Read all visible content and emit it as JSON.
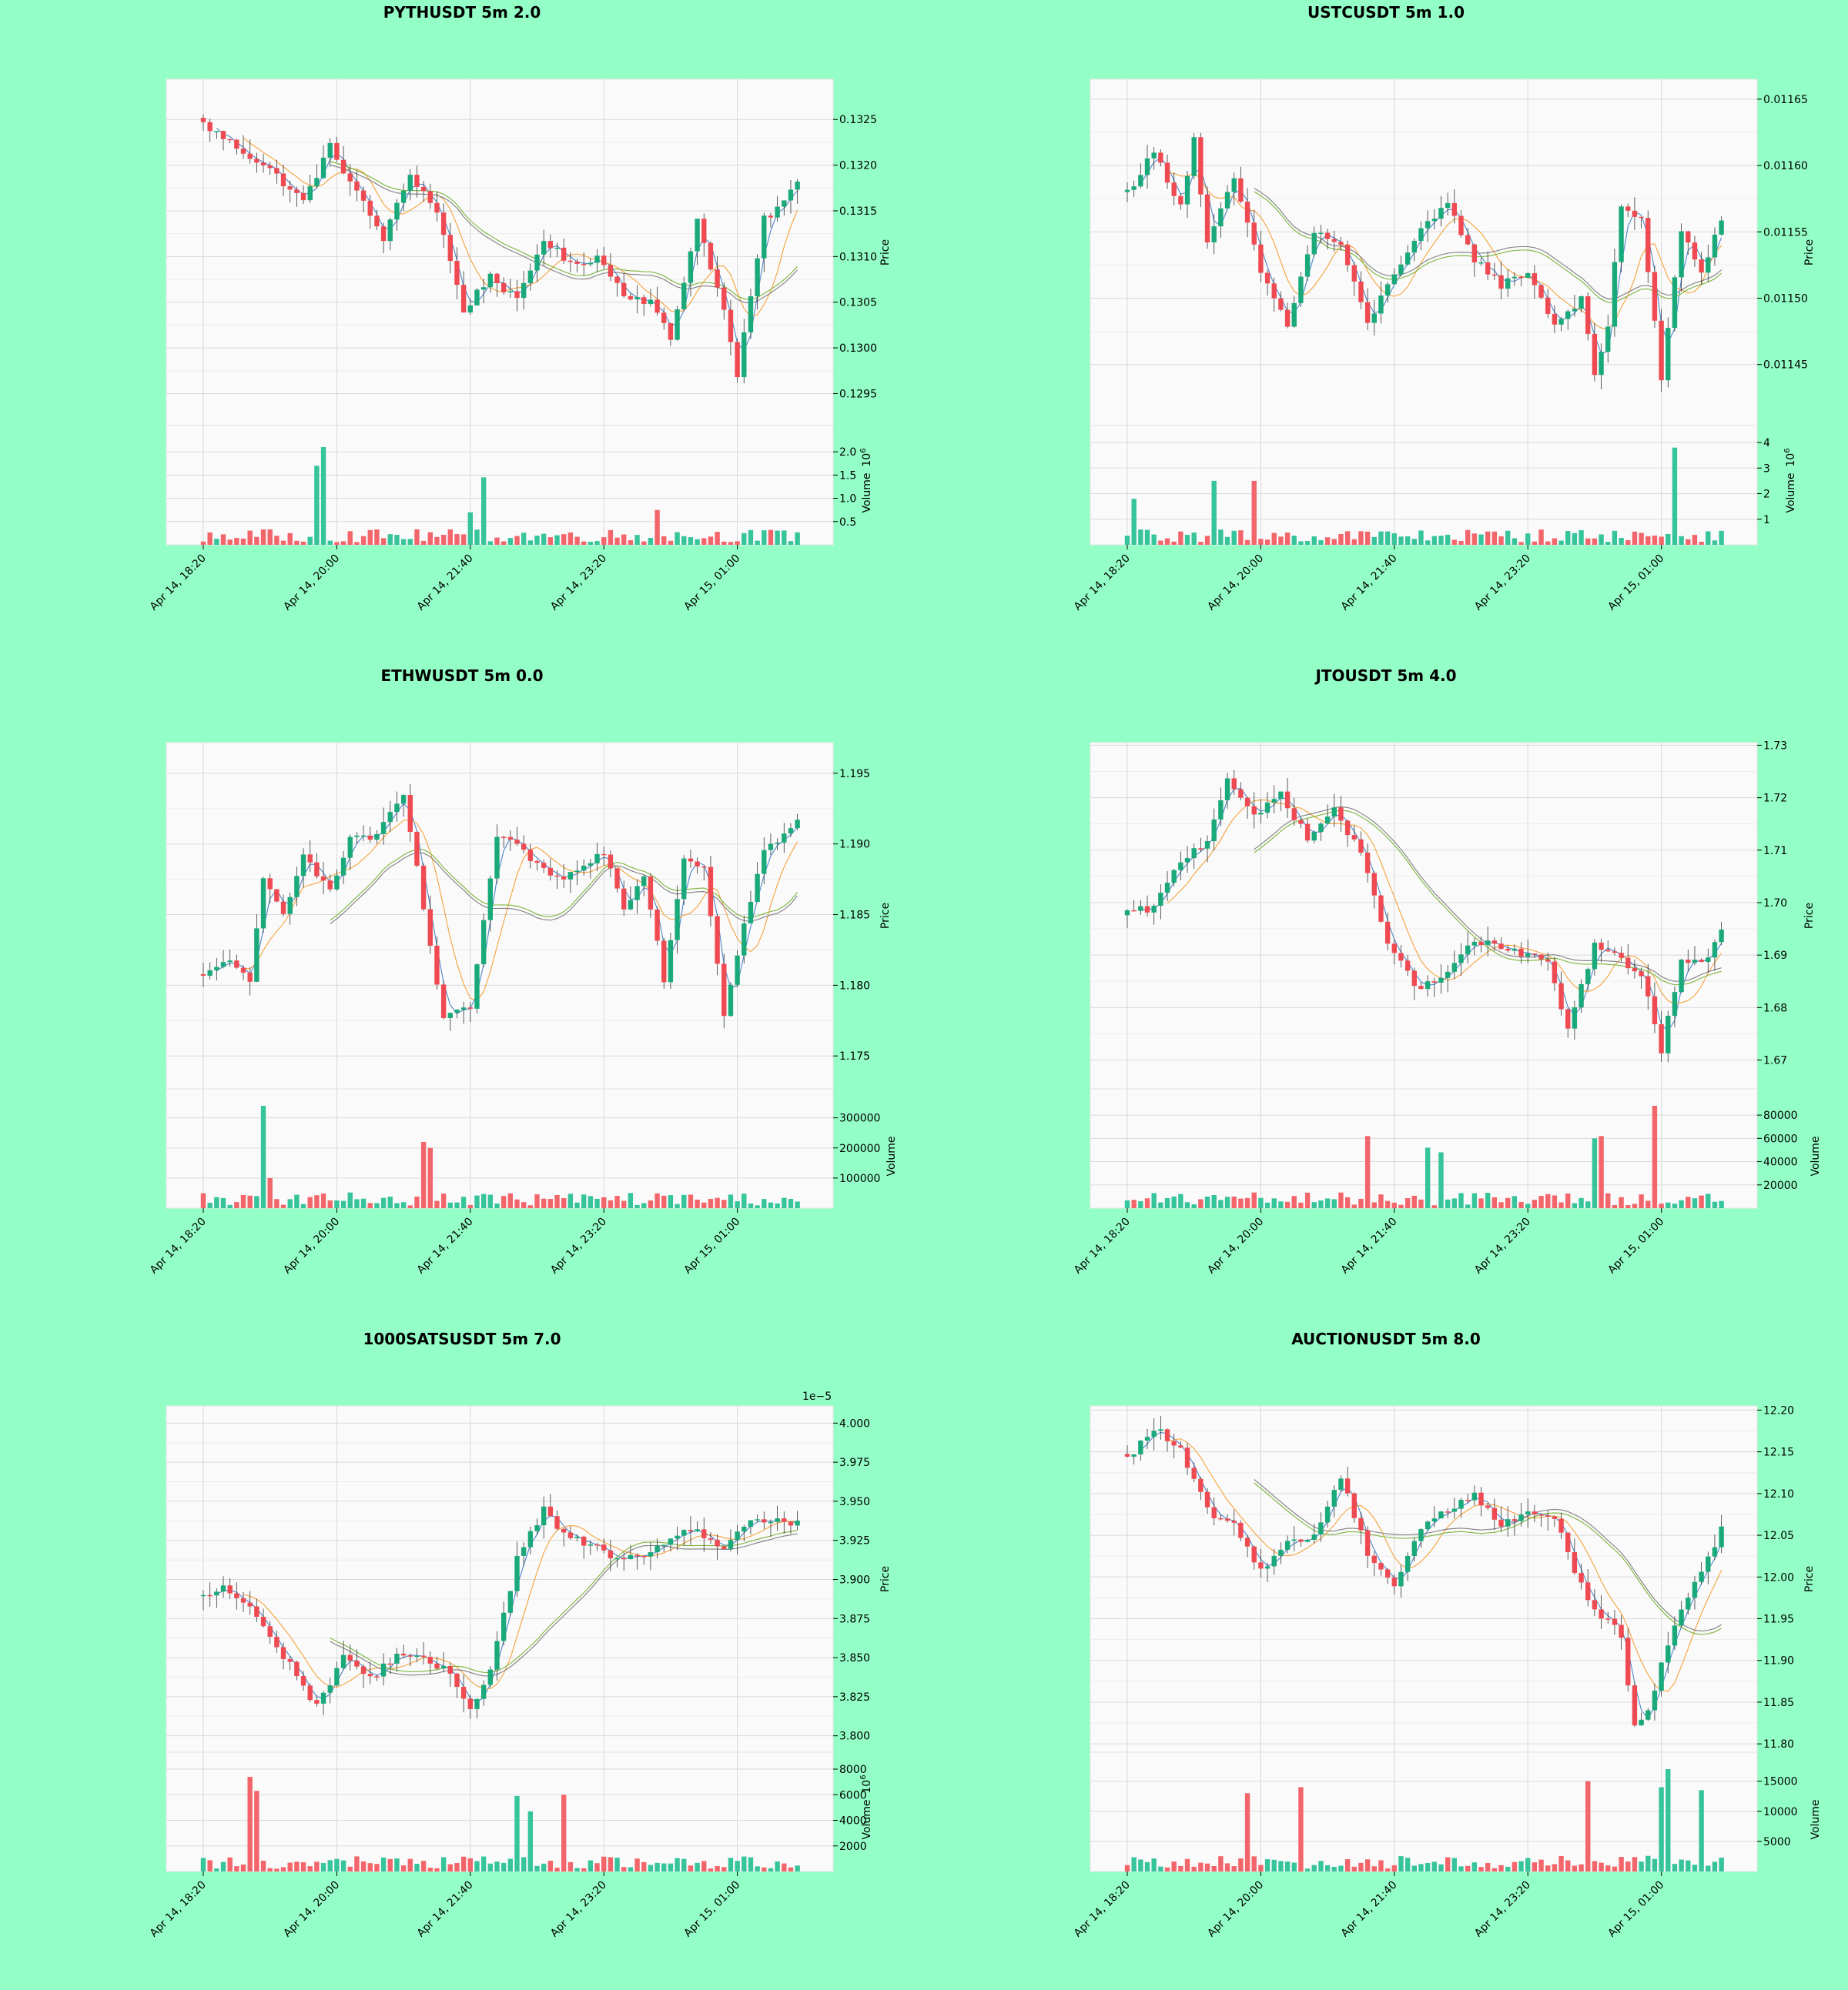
{
  "colors": {
    "background": "#93ffc6",
    "plot_background": "#fafafa",
    "grid": "#d9d9d9",
    "up": "#1aa97a",
    "down": "#ef4a52",
    "volume_up": "#36c49b",
    "volume_down": "#f2666b",
    "ma_fast": "#4f86c9",
    "ma_mid": "#f5a23c",
    "ma_slow_a": "#7ab43a",
    "ma_slow_b": "#7f7f7f"
  },
  "chart_data": [
    {
      "type": "candlestick",
      "title": "PYTHUSDT 5m 2.0",
      "ylabel": "Price",
      "volume_label": "Volume",
      "volume_exponent": "10",
      "volume_exponent_power": "6",
      "price_offset_label": "",
      "x_ticks": [
        "Apr 14, 18:20",
        "Apr 14, 20:00",
        "Apr 14, 21:40",
        "Apr 14, 23:20",
        "Apr 15, 01:00"
      ],
      "price_ticks": [
        "0.1295",
        "0.1300",
        "0.1305",
        "0.1310",
        "0.1315",
        "0.1320",
        "0.1325"
      ],
      "price_range": [
        0.12915,
        0.13294
      ],
      "volume_ticks": [
        "0.5",
        "1.0",
        "1.5",
        "2.0"
      ],
      "volume_range": [
        0,
        2.2
      ],
      "anchors": [
        [
          0,
          0.13245
        ],
        [
          5,
          0.1322
        ],
        [
          10,
          0.13195
        ],
        [
          15,
          0.1316
        ],
        [
          19,
          0.1322
        ],
        [
          23,
          0.1317
        ],
        [
          27,
          0.1312
        ],
        [
          31,
          0.1319
        ],
        [
          35,
          0.1315
        ],
        [
          39,
          0.1304
        ],
        [
          43,
          0.1308
        ],
        [
          47,
          0.1305
        ],
        [
          51,
          0.1312
        ],
        [
          55,
          0.1309
        ],
        [
          59,
          0.131
        ],
        [
          63,
          0.1306
        ],
        [
          67,
          0.1305
        ],
        [
          70,
          0.1301
        ],
        [
          74,
          0.1314
        ],
        [
          78,
          0.1304
        ],
        [
          80,
          0.1297
        ],
        [
          84,
          0.1314
        ],
        [
          87,
          0.1316
        ],
        [
          89,
          0.1318
        ]
      ],
      "volume_spikes": [
        [
          17,
          1.7
        ],
        [
          18,
          2.1
        ],
        [
          40,
          0.7
        ],
        [
          42,
          1.45
        ],
        [
          68,
          0.75
        ]
      ]
    },
    {
      "type": "candlestick",
      "title": "USTCUSDT 5m 1.0",
      "ylabel": "Price",
      "volume_label": "Volume",
      "volume_exponent": "10",
      "volume_exponent_power": "6",
      "price_offset_label": "",
      "x_ticks": [
        "Apr 14, 18:20",
        "Apr 14, 20:00",
        "Apr 14, 21:40",
        "Apr 14, 23:20",
        "Apr 15, 01:00"
      ],
      "price_ticks": [
        "0.01145",
        "0.01150",
        "0.01155",
        "0.01160",
        "0.01165"
      ],
      "price_range": [
        0.011404,
        0.011665
      ],
      "volume_ticks": [
        "1",
        "2",
        "3",
        "4"
      ],
      "volume_range": [
        0,
        4.0
      ],
      "anchors": [
        [
          0,
          0.01158
        ],
        [
          4,
          0.01161
        ],
        [
          8,
          0.01157
        ],
        [
          10,
          0.01162
        ],
        [
          12,
          0.01154
        ],
        [
          16,
          0.01159
        ],
        [
          20,
          0.01152
        ],
        [
          24,
          0.01148
        ],
        [
          28,
          0.01155
        ],
        [
          32,
          0.01154
        ],
        [
          36,
          0.01148
        ],
        [
          40,
          0.01152
        ],
        [
          44,
          0.01155
        ],
        [
          48,
          0.01157
        ],
        [
          52,
          0.01153
        ],
        [
          56,
          0.01151
        ],
        [
          60,
          0.01152
        ],
        [
          64,
          0.01148
        ],
        [
          68,
          0.0115
        ],
        [
          70,
          0.01144
        ],
        [
          72,
          0.01148
        ],
        [
          74,
          0.01157
        ],
        [
          77,
          0.01156
        ],
        [
          80,
          0.01144
        ],
        [
          83,
          0.01155
        ],
        [
          86,
          0.01152
        ],
        [
          89,
          0.01156
        ]
      ],
      "volume_spikes": [
        [
          1,
          1.8
        ],
        [
          13,
          2.5
        ],
        [
          19,
          2.5
        ],
        [
          82,
          3.8
        ]
      ]
    },
    {
      "type": "candlestick",
      "title": "ETHWUSDT 5m 0.0",
      "ylabel": "Price",
      "volume_label": "Volume",
      "volume_exponent": "",
      "volume_exponent_power": "",
      "price_offset_label": "",
      "x_ticks": [
        "Apr 14, 18:20",
        "Apr 14, 20:00",
        "Apr 14, 21:40",
        "Apr 14, 23:20",
        "Apr 15, 01:00"
      ],
      "price_ticks": [
        "1.175",
        "1.180",
        "1.185",
        "1.190",
        "1.195"
      ],
      "price_range": [
        1.17267,
        1.19717
      ],
      "volume_ticks": [
        "100000",
        "200000",
        "300000"
      ],
      "volume_range": [
        0,
        340000
      ],
      "anchors": [
        [
          0,
          1.1805
        ],
        [
          4,
          1.182
        ],
        [
          7,
          1.18
        ],
        [
          9,
          1.1875
        ],
        [
          12,
          1.185
        ],
        [
          15,
          1.1895
        ],
        [
          19,
          1.1865
        ],
        [
          22,
          1.1905
        ],
        [
          26,
          1.1905
        ],
        [
          30,
          1.1935
        ],
        [
          33,
          1.1855
        ],
        [
          36,
          1.1775
        ],
        [
          40,
          1.1785
        ],
        [
          44,
          1.1905
        ],
        [
          48,
          1.1895
        ],
        [
          52,
          1.1875
        ],
        [
          56,
          1.188
        ],
        [
          60,
          1.1895
        ],
        [
          63,
          1.1855
        ],
        [
          66,
          1.188
        ],
        [
          69,
          1.1805
        ],
        [
          72,
          1.189
        ],
        [
          75,
          1.1885
        ],
        [
          78,
          1.178
        ],
        [
          81,
          1.1845
        ],
        [
          84,
          1.1895
        ],
        [
          89,
          1.1915
        ]
      ],
      "volume_spikes": [
        [
          9,
          340000
        ],
        [
          10,
          100000
        ],
        [
          33,
          220000
        ],
        [
          34,
          200000
        ]
      ]
    },
    {
      "type": "candlestick",
      "title": "JTOUSDT 5m 4.0",
      "ylabel": "Price",
      "volume_label": "Volume",
      "volume_exponent": "",
      "volume_exponent_power": "",
      "price_offset_label": "",
      "x_ticks": [
        "Apr 14, 18:20",
        "Apr 14, 20:00",
        "Apr 14, 21:40",
        "Apr 14, 23:20",
        "Apr 15, 01:00"
      ],
      "price_ticks": [
        "1.67",
        "1.68",
        "1.69",
        "1.70",
        "1.71",
        "1.72",
        "1.73"
      ],
      "price_range": [
        1.6645,
        1.7305
      ],
      "volume_ticks": [
        "20000",
        "40000",
        "60000",
        "80000"
      ],
      "volume_range": [
        0,
        88000
      ],
      "anchors": [
        [
          0,
          1.698
        ],
        [
          4,
          1.699
        ],
        [
          8,
          1.708
        ],
        [
          12,
          1.712
        ],
        [
          15,
          1.724
        ],
        [
          19,
          1.716
        ],
        [
          23,
          1.721
        ],
        [
          27,
          1.712
        ],
        [
          31,
          1.718
        ],
        [
          35,
          1.709
        ],
        [
          39,
          1.693
        ],
        [
          43,
          1.684
        ],
        [
          47,
          1.685
        ],
        [
          51,
          1.692
        ],
        [
          55,
          1.692
        ],
        [
          59,
          1.69
        ],
        [
          63,
          1.689
        ],
        [
          66,
          1.676
        ],
        [
          70,
          1.692
        ],
        [
          74,
          1.689
        ],
        [
          77,
          1.686
        ],
        [
          80,
          1.672
        ],
        [
          83,
          1.689
        ],
        [
          86,
          1.688
        ],
        [
          89,
          1.695
        ]
      ],
      "volume_spikes": [
        [
          36,
          62000
        ],
        [
          45,
          52000
        ],
        [
          47,
          48000
        ],
        [
          70,
          60000
        ],
        [
          71,
          62000
        ],
        [
          79,
          88000
        ]
      ]
    },
    {
      "type": "candlestick",
      "title": "1000SATSUSDT 5m 7.0",
      "ylabel": "Price",
      "volume_label": "Volume",
      "volume_exponent": "10",
      "volume_exponent_power": "6",
      "price_offset_label": "1e−5",
      "x_ticks": [
        "Apr 14, 18:20",
        "Apr 14, 20:00",
        "Apr 14, 21:40",
        "Apr 14, 23:20",
        "Apr 15, 01:00"
      ],
      "price_ticks": [
        "3.800",
        "3.825",
        "3.850",
        "3.875",
        "3.900",
        "3.925",
        "3.950",
        "3.975",
        "4.000"
      ],
      "price_range": [
        3.7895,
        4.011
      ],
      "volume_ticks": [
        "2000",
        "4000",
        "6000",
        "8000"
      ],
      "volume_range": [
        0,
        8000
      ],
      "anchors": [
        [
          0,
          3.888
        ],
        [
          3,
          3.895
        ],
        [
          7,
          3.882
        ],
        [
          10,
          3.862
        ],
        [
          13,
          3.846
        ],
        [
          17,
          3.818
        ],
        [
          21,
          3.852
        ],
        [
          25,
          3.836
        ],
        [
          29,
          3.853
        ],
        [
          33,
          3.848
        ],
        [
          37,
          3.84
        ],
        [
          40,
          3.818
        ],
        [
          43,
          3.842
        ],
        [
          47,
          3.913
        ],
        [
          51,
          3.945
        ],
        [
          54,
          3.928
        ],
        [
          58,
          3.922
        ],
        [
          62,
          3.914
        ],
        [
          66,
          3.912
        ],
        [
          70,
          3.928
        ],
        [
          74,
          3.932
        ],
        [
          78,
          3.918
        ],
        [
          82,
          3.938
        ],
        [
          86,
          3.938
        ],
        [
          89,
          3.935
        ]
      ],
      "volume_spikes": [
        [
          7,
          7400
        ],
        [
          8,
          6300
        ],
        [
          47,
          5900
        ],
        [
          54,
          6000
        ],
        [
          49,
          4700
        ]
      ]
    },
    {
      "type": "candlestick",
      "title": "AUCTIONUSDT 5m 8.0",
      "ylabel": "Price",
      "volume_label": "Volume",
      "volume_exponent": "",
      "volume_exponent_power": "",
      "price_offset_label": "",
      "x_ticks": [
        "Apr 14, 18:20",
        "Apr 14, 20:00",
        "Apr 14, 21:40",
        "Apr 14, 23:20",
        "Apr 15, 01:00"
      ],
      "price_ticks": [
        "11.80",
        "11.85",
        "11.90",
        "11.95",
        "12.00",
        "12.05",
        "12.10",
        "12.15",
        "12.20"
      ],
      "price_range": [
        11.79,
        12.205
      ],
      "volume_ticks": [
        "5000",
        "10000",
        "15000"
      ],
      "volume_range": [
        0,
        17000
      ],
      "anchors": [
        [
          0,
          12.14
        ],
        [
          4,
          12.18
        ],
        [
          8,
          12.15
        ],
        [
          12,
          12.08
        ],
        [
          16,
          12.06
        ],
        [
          20,
          12.01
        ],
        [
          24,
          12.04
        ],
        [
          28,
          12.05
        ],
        [
          32,
          12.12
        ],
        [
          36,
          12.03
        ],
        [
          40,
          11.99
        ],
        [
          44,
          12.06
        ],
        [
          48,
          12.08
        ],
        [
          52,
          12.1
        ],
        [
          56,
          12.06
        ],
        [
          60,
          12.08
        ],
        [
          64,
          12.07
        ],
        [
          68,
          11.99
        ],
        [
          70,
          11.96
        ],
        [
          74,
          11.93
        ],
        [
          76,
          11.82
        ],
        [
          78,
          11.84
        ],
        [
          81,
          11.92
        ],
        [
          84,
          11.98
        ],
        [
          87,
          12.02
        ],
        [
          89,
          12.06
        ]
      ],
      "volume_spikes": [
        [
          69,
          15000
        ],
        [
          80,
          14000
        ],
        [
          81,
          17000
        ],
        [
          86,
          13500
        ],
        [
          18,
          13000
        ],
        [
          26,
          14000
        ]
      ]
    }
  ]
}
